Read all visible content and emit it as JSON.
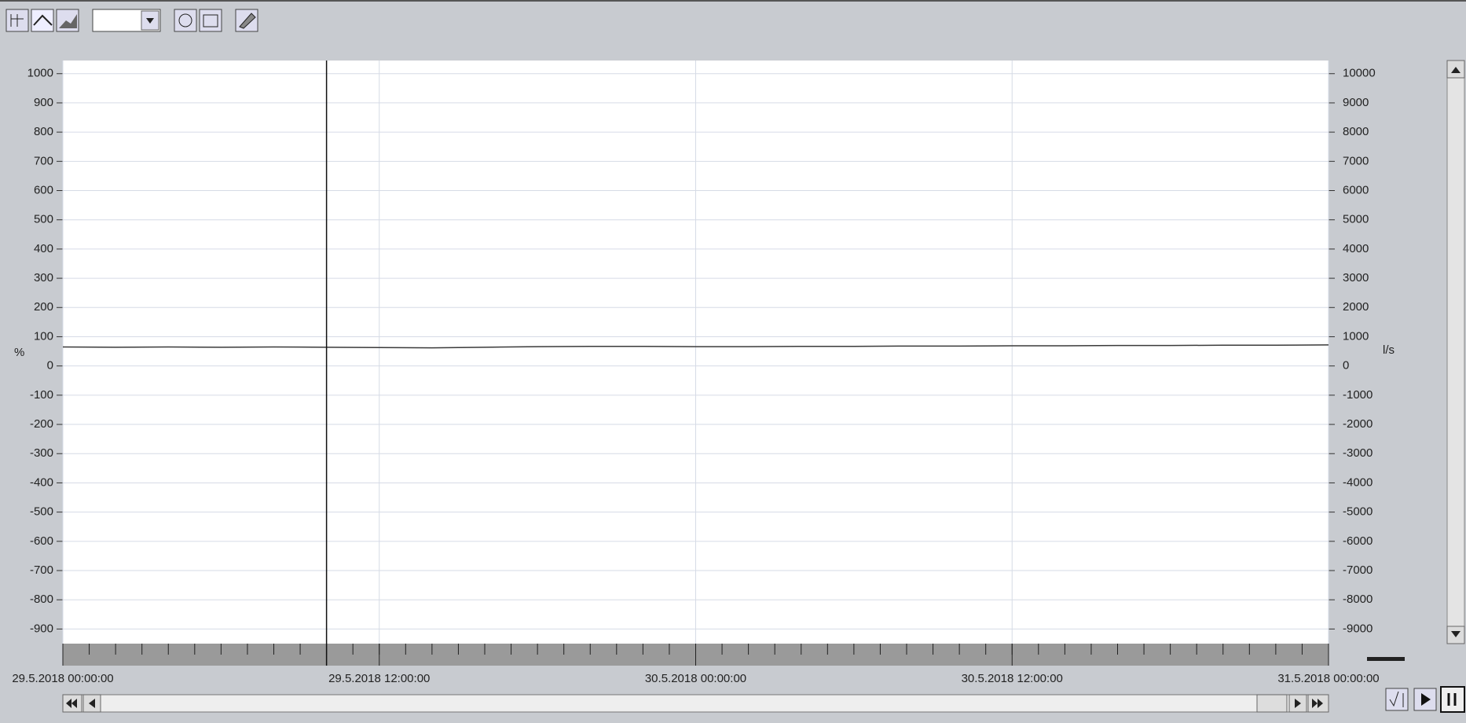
{
  "chart_data": {
    "type": "line",
    "ylabel": "%",
    "y2label": "l/s",
    "x": [
      0,
      2,
      4,
      6,
      8,
      10,
      12,
      14,
      16,
      18,
      20,
      22,
      24,
      26,
      28,
      30,
      32,
      34,
      36,
      38,
      40,
      42,
      44,
      46,
      48
    ],
    "series": [
      {
        "color": "#3a3a3a",
        "values": [
          65,
          64,
          65,
          64,
          65,
          64,
          63,
          62,
          64,
          66,
          67,
          67,
          66,
          66,
          67,
          67,
          68,
          68,
          69,
          69,
          70,
          70,
          71,
          71,
          72
        ]
      }
    ],
    "xlim": [
      0,
      48
    ],
    "xticks": [
      {
        "value": 0,
        "label": "29.5.2018 00:00:00"
      },
      {
        "value": 12,
        "label": "29.5.2018 12:00:00"
      },
      {
        "value": 24,
        "label": "30.5.2018 00:00:00"
      },
      {
        "value": 36,
        "label": "30.5.2018 12:00:00"
      },
      {
        "value": 48,
        "label": "31.5.2018 00:00:00"
      }
    ],
    "xticks_minor": [
      0,
      1,
      2,
      3,
      4,
      5,
      6,
      7,
      8,
      9,
      10,
      11,
      12,
      13,
      14,
      15,
      16,
      17,
      18,
      19,
      20,
      21,
      22,
      23,
      24,
      25,
      26,
      27,
      28,
      29,
      30,
      31,
      32,
      33,
      34,
      35,
      36,
      37,
      38,
      39,
      40,
      41,
      42,
      43,
      44,
      45,
      46,
      47,
      48
    ],
    "ylim": [
      -950,
      1045
    ],
    "yticks": [
      -900,
      -800,
      -700,
      -600,
      -500,
      -400,
      -300,
      -200,
      -100,
      0,
      100,
      200,
      300,
      400,
      500,
      600,
      700,
      800,
      900,
      1000
    ],
    "y2lim": [
      -9500,
      10450
    ],
    "y2ticks": [
      -9000,
      -8000,
      -7000,
      -6000,
      -5000,
      -4000,
      -3000,
      -2000,
      -1000,
      0,
      1000,
      2000,
      3000,
      4000,
      5000,
      6000,
      7000,
      8000,
      9000,
      10000
    ],
    "grid": true,
    "cursor_x": 10
  }
}
